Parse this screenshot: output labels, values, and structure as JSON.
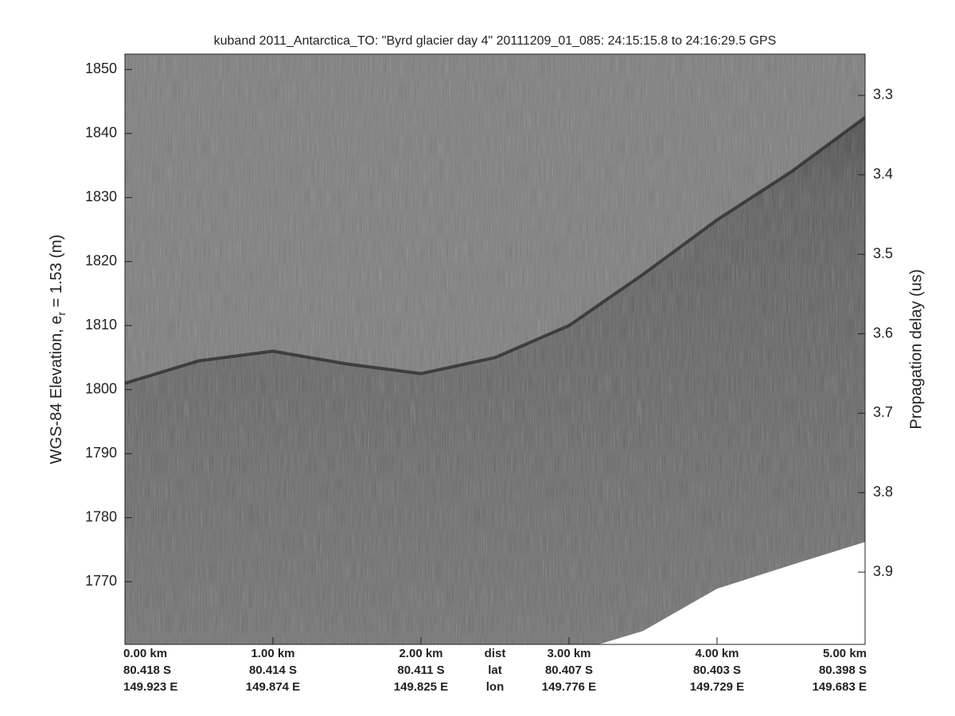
{
  "chart_data": {
    "type": "echogram",
    "title": "kuband 2011_Antarctica_TO: \"Byrd glacier day 4\"  20111209_01_085: 24:15:15.8 to 24:16:29.5 GPS",
    "ylabel": "WGS-84 Elevation, e",
    "ylabel_sub": "r",
    "ylabel_end": " = 1.53 (m)",
    "y2label": "Propagation delay (us)",
    "xlim": [
      0,
      5
    ],
    "xticks": [
      {
        "value": 0,
        "label": "0.00 km"
      },
      {
        "value": 1,
        "label": "1.00 km"
      },
      {
        "value": 2,
        "label": "2.00 km"
      },
      {
        "value": 3,
        "label": "3.00 km"
      },
      {
        "value": 4,
        "label": "4.00 km"
      },
      {
        "value": 5,
        "label": "5.00 km"
      }
    ],
    "lat_labels": [
      "80.418 S",
      "80.414 S",
      "80.411 S",
      "80.407 S",
      "80.403 S",
      "80.398 S"
    ],
    "lon_labels": [
      "149.923 E",
      "149.874 E",
      "149.825 E",
      "149.776 E",
      "149.729 E",
      "149.683 E"
    ],
    "row_names": [
      "dist",
      "lat",
      "lon"
    ],
    "ylim": [
      1760.2,
      1852.4
    ],
    "yticks": [
      1770,
      1780,
      1790,
      1800,
      1810,
      1820,
      1830,
      1840,
      1850
    ],
    "y2lim": [
      3.991,
      3.248
    ],
    "y2ticks": [
      3.3,
      3.4,
      3.5,
      3.6,
      3.7,
      3.8,
      3.9
    ],
    "surface": {
      "x": [
        0,
        0.5,
        1.0,
        1.5,
        2.0,
        2.5,
        3.0,
        3.5,
        4.0,
        4.5,
        5.0
      ],
      "values": [
        1801,
        1804.5,
        1806,
        1804,
        1802.5,
        1805,
        1810,
        1818,
        1826.5,
        1834,
        1842.5
      ]
    },
    "data_bottom": {
      "x": [
        3.2,
        3.5,
        4.0,
        4.5,
        5.0
      ],
      "values": [
        1760.2,
        1762.3,
        1768.9,
        1772.6,
        1776.2
      ]
    }
  }
}
